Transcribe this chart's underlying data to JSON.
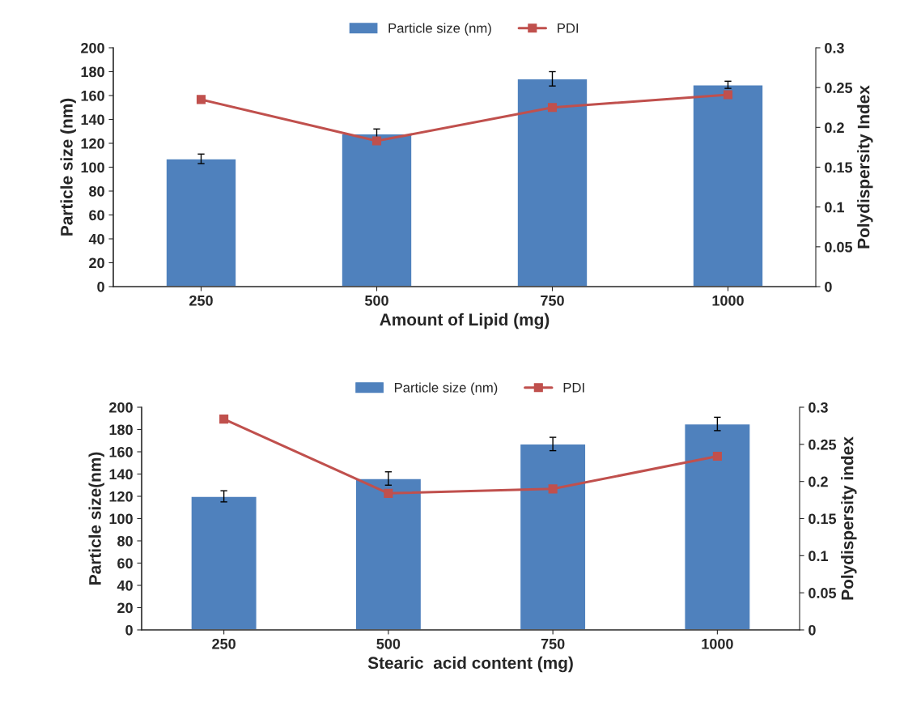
{
  "chart_data": [
    {
      "type": "bar",
      "categories": [
        "250",
        "500",
        "750",
        "1000"
      ],
      "xlabel": "Amount of Lipid (mg)",
      "ylabel": "Particle size (nm)",
      "y2label": "Polydispersity Index",
      "series": [
        {
          "name": "Particle size (nm)",
          "color": "#4f81bd",
          "values": [
            107,
            128,
            174,
            169
          ],
          "errors": [
            4,
            4,
            6,
            3
          ]
        },
        {
          "name": "PDI",
          "type": "line",
          "axis": "y2",
          "color": "#c0504d",
          "marker": "square",
          "values": [
            0.235,
            0.183,
            0.225,
            0.241
          ]
        }
      ],
      "ylim": [
        0,
        200
      ],
      "yticks": [
        0,
        20,
        40,
        60,
        80,
        100,
        120,
        140,
        160,
        180,
        200
      ],
      "y2lim": [
        0,
        0.3
      ],
      "y2ticks": [
        0,
        0.05,
        0.1,
        0.15,
        0.2,
        0.25,
        0.3
      ],
      "legend": "top",
      "grid": false
    },
    {
      "type": "bar",
      "categories": [
        "250",
        "500",
        "750",
        "1000"
      ],
      "xlabel": "Stearic  acid content (mg)",
      "ylabel": "Particle size(nm)",
      "y2label": "Polydispersity index",
      "series": [
        {
          "name": "Particle size (nm)",
          "color": "#4f81bd",
          "values": [
            120,
            136,
            167,
            185
          ],
          "errors": [
            5,
            6,
            6,
            6
          ]
        },
        {
          "name": "PDI",
          "type": "line",
          "axis": "y2",
          "color": "#c0504d",
          "marker": "square",
          "values": [
            0.284,
            0.184,
            0.19,
            0.234
          ]
        }
      ],
      "ylim": [
        0,
        200
      ],
      "yticks": [
        0,
        20,
        40,
        60,
        80,
        100,
        120,
        140,
        160,
        180,
        200
      ],
      "y2lim": [
        0,
        0.3
      ],
      "y2ticks": [
        0,
        0.05,
        0.1,
        0.15,
        0.2,
        0.25,
        0.3
      ],
      "legend": "top",
      "grid": false
    }
  ]
}
